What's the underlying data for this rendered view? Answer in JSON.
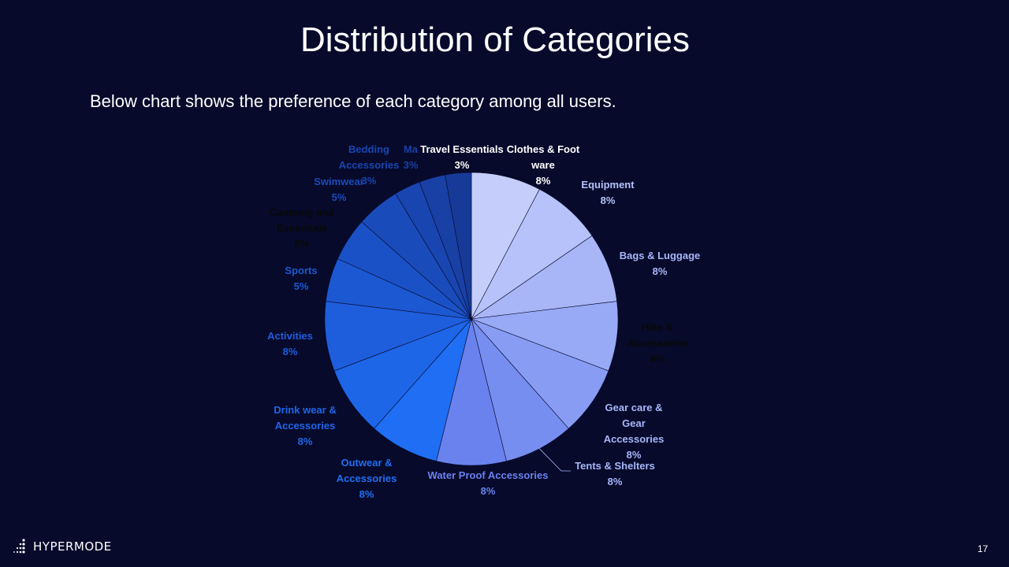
{
  "slide": {
    "title": "Distribution of Categories",
    "subtitle": "Below chart shows the preference of each category among all users.",
    "page_number": "17",
    "brand": "HYPERMODE"
  },
  "colors": {
    "background": "#070a2b"
  },
  "chart_data": {
    "type": "pie",
    "title": "",
    "categories": [
      "Clothes & Foot ware",
      "Equipment",
      "Bags & Luggage",
      "Hike & Accessories",
      "Gear care & Gear Accessories",
      "Tents & Shelters",
      "Water Proof Accessories",
      "Outwear & Accessories",
      "Drink wear & Accessories",
      "Activities",
      "Sports",
      "Camping and Essentials",
      "Swimwear",
      "Bedding Accessories",
      "Ma",
      "Travel Essentials"
    ],
    "values": [
      8,
      8,
      8,
      8,
      8,
      8,
      8,
      8,
      8,
      8,
      5,
      5,
      5,
      3,
      3,
      3
    ],
    "value_labels": [
      "8%",
      "8%",
      "8%",
      "8%",
      "8%",
      "8%",
      "8%",
      "8%",
      "8%",
      "8%",
      "5%",
      "5%",
      "5%",
      "3%",
      "3%",
      "3%"
    ],
    "colors": [
      "#c5cefa",
      "#b6c2f9",
      "#a8b6f7",
      "#98a9f5",
      "#889cf3",
      "#778ef1",
      "#6a82ee",
      "#1f6ef3",
      "#1e66e8",
      "#1e5edd",
      "#1c58d2",
      "#1b51c6",
      "#1a4bbb",
      "#1945b0",
      "#1840a5",
      "#173a98"
    ],
    "label_colors": [
      "#ffffff",
      "#b6c2f9",
      "#a8b6f7",
      "#080808",
      "#a8b6f7",
      "#a8b6f7",
      "#6a82ee",
      "#1f6ef3",
      "#1e66e8",
      "#1e5edd",
      "#1c58d2",
      "#080808",
      "#1a4bbb",
      "#1945b0",
      "#1840a5",
      "#ffffff"
    ],
    "start_angle_deg": 0,
    "direction": "clockwise",
    "legend": "none",
    "data_labels": "outside"
  }
}
